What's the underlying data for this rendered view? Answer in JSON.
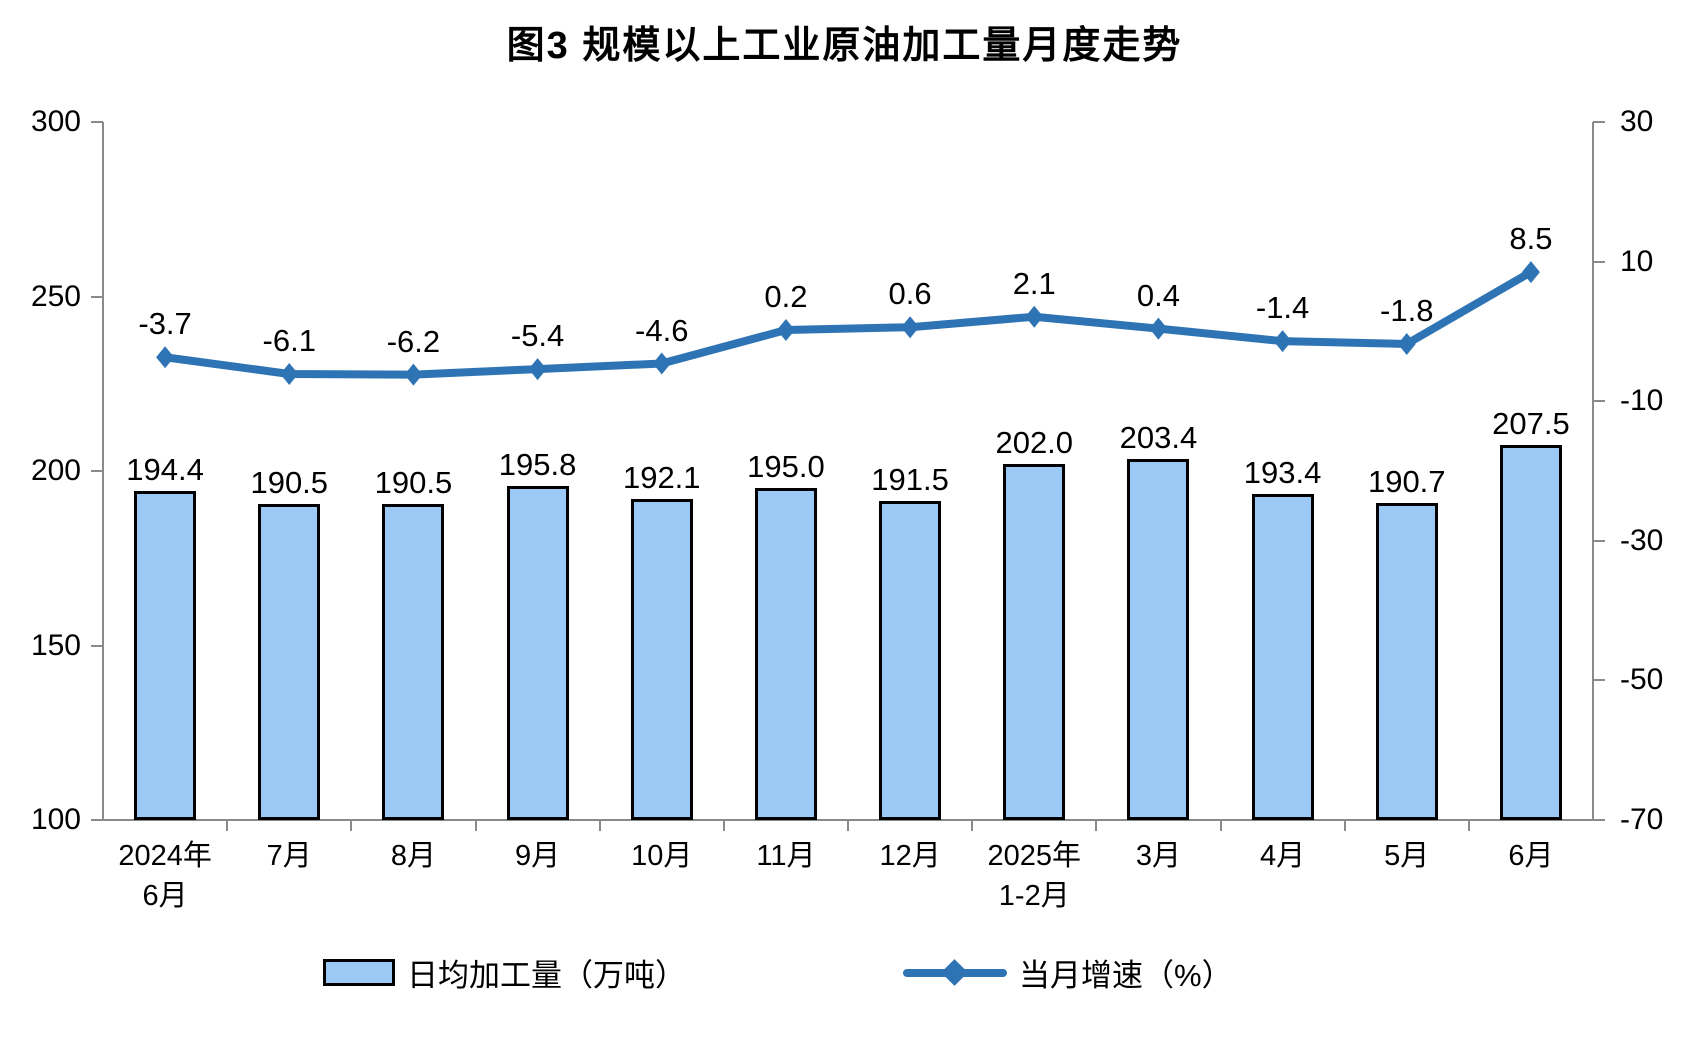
{
  "title": "图3 规模以上工业原油加工量月度走势",
  "chart_data": {
    "type": "combo-bar-line",
    "title": "图3 规模以上工业原油加工量月度走势",
    "categories": [
      "2024年\n6月",
      "7月",
      "8月",
      "9月",
      "10月",
      "11月",
      "12月",
      "2025年\n1-2月",
      "3月",
      "4月",
      "5月",
      "6月"
    ],
    "series": [
      {
        "name": "日均加工量（万吨）",
        "type": "bar",
        "axis": "left",
        "values": [
          194.4,
          190.5,
          190.5,
          195.8,
          192.1,
          195.0,
          191.5,
          202.0,
          203.4,
          193.4,
          190.7,
          207.5
        ],
        "labels": [
          "194.4",
          "190.5",
          "190.5",
          "195.8",
          "192.1",
          "195.0",
          "191.5",
          "202.0",
          "203.4",
          "193.4",
          "190.7",
          "207.5"
        ]
      },
      {
        "name": "当月增速（%）",
        "type": "line",
        "axis": "right",
        "values": [
          -3.7,
          -6.1,
          -6.2,
          -5.4,
          -4.6,
          0.2,
          0.6,
          2.1,
          0.4,
          -1.4,
          -1.8,
          8.5
        ],
        "labels": [
          "-3.7",
          "-6.1",
          "-6.2",
          "-5.4",
          "-4.6",
          "0.2",
          "0.6",
          "2.1",
          "0.4",
          "-1.4",
          "-1.8",
          "8.5"
        ]
      }
    ],
    "left_axis": {
      "min": 100,
      "max": 300,
      "ticks": [
        300,
        250,
        200,
        150,
        100
      ]
    },
    "right_axis": {
      "min": -70,
      "max": 30,
      "ticks": [
        30,
        10,
        -10,
        -30,
        -50,
        -70
      ]
    },
    "grid": false,
    "legend_position": "bottom",
    "colors": {
      "bar_fill": "#9CC8F5",
      "bar_border": "#000000",
      "line": "#2E74B5",
      "axis_line": "#8A8A8A",
      "text": "#000000",
      "background": "#FFFFFF"
    }
  }
}
